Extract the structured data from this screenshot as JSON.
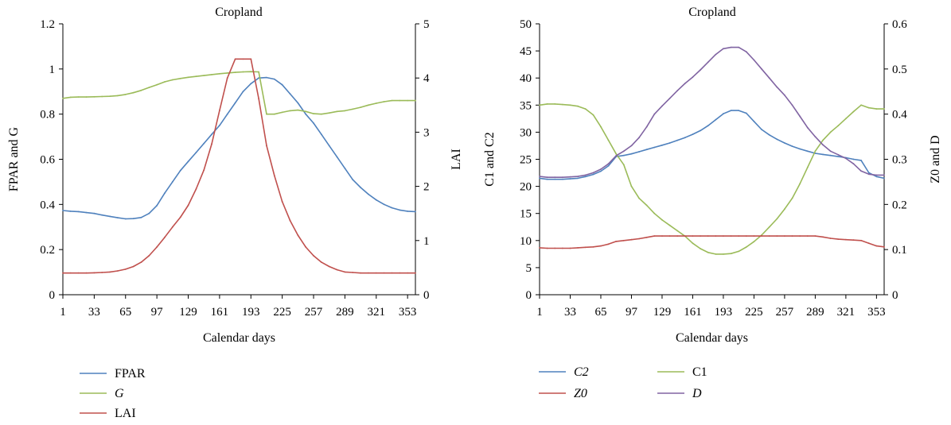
{
  "chart_data": [
    {
      "type": "line",
      "title": "Cropland",
      "xlabel": "Calendar days",
      "ylabel_left": "FPAR and G",
      "ylabel_right": "LAI",
      "x_ticks": [
        "1",
        "33",
        "65",
        "97",
        "129",
        "161",
        "193",
        "225",
        "257",
        "289",
        "321",
        "353"
      ],
      "xlim": [
        1,
        361
      ],
      "ylim_left": [
        0,
        1.2
      ],
      "yticks_left": [
        "0",
        "0.2",
        "0.4",
        "0.6",
        "0.8",
        "1",
        "1.2"
      ],
      "ylim_right": [
        0,
        5
      ],
      "yticks_right": [
        "0",
        "1",
        "2",
        "3",
        "4",
        "5"
      ],
      "grid": false,
      "legend_position": "bottom-left",
      "x": [
        1,
        9,
        17,
        25,
        33,
        41,
        49,
        57,
        65,
        73,
        81,
        89,
        97,
        105,
        113,
        121,
        129,
        137,
        145,
        153,
        161,
        169,
        177,
        185,
        193,
        201,
        209,
        217,
        225,
        233,
        241,
        249,
        257,
        265,
        273,
        281,
        289,
        297,
        305,
        313,
        321,
        329,
        337,
        345,
        353,
        361
      ],
      "series": [
        {
          "name": "FPAR",
          "axis": "left",
          "color": "#4f81bd",
          "values": [
            0.373,
            0.37,
            0.368,
            0.364,
            0.36,
            0.353,
            0.347,
            0.341,
            0.336,
            0.337,
            0.342,
            0.36,
            0.395,
            0.45,
            0.5,
            0.55,
            0.59,
            0.63,
            0.67,
            0.71,
            0.75,
            0.8,
            0.85,
            0.9,
            0.935,
            0.96,
            0.962,
            0.955,
            0.93,
            0.89,
            0.85,
            0.8,
            0.76,
            0.71,
            0.66,
            0.61,
            0.56,
            0.51,
            0.475,
            0.445,
            0.42,
            0.4,
            0.385,
            0.375,
            0.37,
            0.368
          ]
        },
        {
          "name": "G",
          "axis": "left",
          "color": "#9bbb59",
          "values": [
            0.87,
            0.875,
            0.876,
            0.876,
            0.877,
            0.878,
            0.879,
            0.882,
            0.887,
            0.895,
            0.905,
            0.918,
            0.93,
            0.943,
            0.952,
            0.958,
            0.963,
            0.967,
            0.971,
            0.975,
            0.979,
            0.982,
            0.985,
            0.987,
            0.988,
            0.987,
            0.8,
            0.8,
            0.808,
            0.815,
            0.818,
            0.812,
            0.802,
            0.8,
            0.805,
            0.812,
            0.815,
            0.822,
            0.83,
            0.84,
            0.848,
            0.855,
            0.86,
            0.86,
            0.86,
            0.86
          ]
        },
        {
          "name": "LAI",
          "axis": "right",
          "color": "#c0504d",
          "values": [
            0.4,
            0.4,
            0.4,
            0.4,
            0.405,
            0.41,
            0.42,
            0.44,
            0.47,
            0.52,
            0.6,
            0.72,
            0.88,
            1.06,
            1.25,
            1.43,
            1.65,
            1.95,
            2.3,
            2.78,
            3.4,
            4.0,
            4.35,
            4.35,
            4.35,
            3.62,
            2.75,
            2.2,
            1.72,
            1.37,
            1.1,
            0.88,
            0.72,
            0.6,
            0.52,
            0.46,
            0.42,
            0.41,
            0.4,
            0.4,
            0.4,
            0.4,
            0.4,
            0.4,
            0.4,
            0.4
          ]
        }
      ]
    },
    {
      "type": "line",
      "title": "Cropland",
      "xlabel": "Calendar days",
      "ylabel_left": "C1 and C2",
      "ylabel_right": "Z0 and D",
      "x_ticks": [
        "1",
        "33",
        "65",
        "97",
        "129",
        "161",
        "193",
        "225",
        "257",
        "289",
        "321",
        "353"
      ],
      "xlim": [
        1,
        361
      ],
      "ylim_left": [
        0,
        50
      ],
      "yticks_left": [
        "0",
        "5",
        "10",
        "15",
        "20",
        "25",
        "30",
        "35",
        "40",
        "45",
        "50"
      ],
      "ylim_right": [
        0,
        0.6
      ],
      "yticks_right": [
        "0",
        "0.1",
        "0.2",
        "0.3",
        "0.4",
        "0.5",
        "0.6"
      ],
      "grid": false,
      "legend_position": "bottom-left",
      "x": [
        1,
        9,
        17,
        25,
        33,
        41,
        49,
        57,
        65,
        73,
        81,
        89,
        97,
        105,
        113,
        121,
        129,
        137,
        145,
        153,
        161,
        169,
        177,
        185,
        193,
        201,
        209,
        217,
        225,
        233,
        241,
        249,
        257,
        265,
        273,
        281,
        289,
        297,
        305,
        313,
        321,
        329,
        337,
        345,
        353,
        361
      ],
      "series": [
        {
          "name": "C2",
          "axis": "left",
          "color": "#4f81bd",
          "values": [
            21.5,
            21.3,
            21.3,
            21.3,
            21.4,
            21.5,
            21.8,
            22.2,
            22.8,
            23.8,
            25.5,
            25.7,
            26.0,
            26.4,
            26.8,
            27.2,
            27.6,
            28.0,
            28.5,
            29.0,
            29.6,
            30.3,
            31.2,
            32.3,
            33.4,
            34.0,
            34.0,
            33.5,
            32.0,
            30.5,
            29.5,
            28.7,
            28.0,
            27.4,
            26.9,
            26.5,
            26.1,
            25.9,
            25.7,
            25.5,
            25.3,
            25.0,
            24.8,
            22.5,
            21.8,
            21.5
          ]
        },
        {
          "name": "C1",
          "axis": "left",
          "color": "#9bbb59",
          "values": [
            35.0,
            35.2,
            35.2,
            35.1,
            35.0,
            34.8,
            34.3,
            33.2,
            31.0,
            28.5,
            26.0,
            24.0,
            20.0,
            17.8,
            16.5,
            15.0,
            13.8,
            12.8,
            11.8,
            10.8,
            9.5,
            8.5,
            7.8,
            7.5,
            7.5,
            7.6,
            8.0,
            8.8,
            9.8,
            11.0,
            12.5,
            14.0,
            15.8,
            17.8,
            20.5,
            23.5,
            26.5,
            28.5,
            30.0,
            31.2,
            32.5,
            33.8,
            35.0,
            34.5,
            34.3,
            34.3
          ]
        },
        {
          "name": "Z0",
          "axis": "right",
          "color": "#c0504d",
          "values": [
            0.104,
            0.103,
            0.103,
            0.103,
            0.103,
            0.104,
            0.105,
            0.106,
            0.108,
            0.112,
            0.118,
            0.12,
            0.122,
            0.124,
            0.127,
            0.13,
            0.13,
            0.13,
            0.13,
            0.13,
            0.13,
            0.13,
            0.13,
            0.13,
            0.13,
            0.13,
            0.13,
            0.13,
            0.13,
            0.13,
            0.13,
            0.13,
            0.13,
            0.13,
            0.13,
            0.13,
            0.13,
            0.128,
            0.125,
            0.123,
            0.122,
            0.121,
            0.12,
            0.114,
            0.108,
            0.106
          ]
        },
        {
          "name": "D",
          "axis": "right",
          "color": "#8064a2",
          "values": [
            0.262,
            0.26,
            0.26,
            0.26,
            0.261,
            0.262,
            0.265,
            0.27,
            0.278,
            0.29,
            0.308,
            0.318,
            0.33,
            0.348,
            0.372,
            0.4,
            0.418,
            0.435,
            0.452,
            0.468,
            0.482,
            0.498,
            0.515,
            0.532,
            0.545,
            0.548,
            0.548,
            0.538,
            0.52,
            0.5,
            0.48,
            0.46,
            0.442,
            0.42,
            0.395,
            0.37,
            0.35,
            0.332,
            0.318,
            0.31,
            0.302,
            0.29,
            0.274,
            0.267,
            0.265,
            0.265
          ]
        }
      ]
    }
  ]
}
